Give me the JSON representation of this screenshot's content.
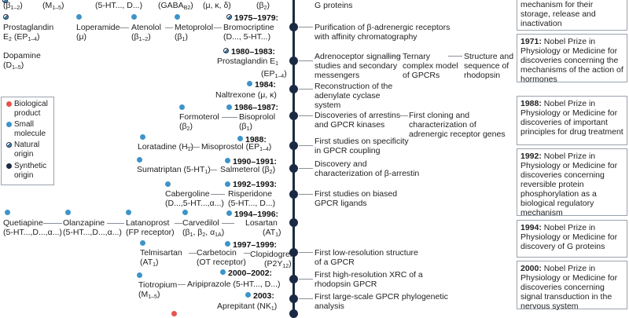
{
  "legend": {
    "items": [
      {
        "label": "Biological product",
        "kind": "biological"
      },
      {
        "label": "Small molecule",
        "kind": "small"
      },
      {
        "label": "Natural origin",
        "kind": "natural"
      },
      {
        "label": "Synthetic origin",
        "kind": "synthetic"
      }
    ]
  },
  "years": {
    "y1975": "1975–1979:",
    "y1980": "1980–1983:",
    "y1984": "1984:",
    "y1986": "1986–1987:",
    "y1988": "1988:",
    "y1990": "1990–1991:",
    "y1992": "1992–1993:",
    "y1994": "1994–1996:",
    "y1997": "1997–1999:",
    "y2000": "2000–2002:",
    "y2003": "2003:"
  },
  "drugs": {
    "top_beta12": "(β",
    "top_m15": "(M",
    "top_5ht": "(5-HT..., D...)",
    "top_gaba": "(GABA",
    "top_mukd": "(μ, κ, δ)",
    "top_beta2": "(β",
    "prostaglandin_e2": "Prostaglandin",
    "prostaglandin_e2_sub": "E",
    "prostaglandin_e2_rec": "(EP",
    "loperamide": "Loperamide",
    "loperamide_rec": "(μ)",
    "atenolol": "Atenolol",
    "atenolol_rec": "(β",
    "metoprolol": "Metoprolol",
    "metoprolol_rec": "(β",
    "bromocriptine": "Bromocriptine",
    "bromocriptine_rec": "(D..., 5-HT...)",
    "dopamine": "Dopamine",
    "dopamine_rec": "(D",
    "prostaglandin_e1": "Prostaglandin E",
    "prostaglandin_e1_rec": "(EP",
    "naltrexone": "Naltrexone (μ, κ)",
    "formoterol": "Formoterol",
    "formoterol_rec": "(β",
    "bisoprolol": "Bisoprolol",
    "bisoprolol_rec": "(β",
    "loratadine": "Loratadine (H",
    "misoprostol": "Misoprostol (EP",
    "sumatriptan": "Sumatriptan (5-HT",
    "salmeterol": "Salmeterol (β",
    "cabergoline": "Cabergoline",
    "cabergoline_rec": "(D...,5-HT...,α...)",
    "risperidone": "Risperidone",
    "risperidone_rec": "(5-HT..., D...)",
    "quetiapine": "Quetiapine",
    "quetiapine_rec": "(5-HT...,D...,α...)",
    "olanzapine": "Olanzapine",
    "olanzapine_rec": "(5-HT...,D...,α...)",
    "latanoprost": "Latanoprost",
    "latanoprost_rec": "(FP receptor)",
    "carvedilol": "Carvedilol",
    "carvedilol_rec": "(β",
    "losartan": "Losartan",
    "losartan_rec": "(AT",
    "telmisartan": "Telmisartan",
    "telmisartan_rec": "(AT",
    "carbetocin": "Carbetocin",
    "carbetocin_rec": "(OT receptor)",
    "clopidogrel": "Clopidogrel",
    "clopidogrel_rec": "(P2Y",
    "tiotropium": "Tiotropium",
    "tiotropium_rec": "(M",
    "aripiprazole": "Aripiprazole (5-HT..., D...)",
    "aprepitant": "Aprepitant (NK"
  },
  "discoveries": {
    "g_proteins": "G proteins",
    "purification": "Purification of β-adrenergic receptors with affinity chromatography",
    "adrenoceptor": "Adrenoceptor signalling studies and secondary messengers",
    "ternary": "Ternary complex model of GPCRs",
    "structure": "Structure and sequence of rhodopsin",
    "adenylate": "Reconstruction of the adenylate cyclase system",
    "arrestins": "Discoveries of arrestins and GPCR kinases",
    "cloning": "First cloning and characterization of adrenergic receptor genes",
    "coupling": "First studies on specificity in GPCR coupling",
    "barrestin": "Discovery and characterization of β-arrestin",
    "biased": "First studies on biased GPCR ligands",
    "lowres": "First low-resolution structure of a GPCR",
    "highres": "First high-resolution XRC of a rhodopsin GPCR",
    "phylogenetic": "First large-scale GPCR phylogenetic analysis"
  },
  "nobel": {
    "top_text": "mechanism for their storage, release and inactivation",
    "n1971_year": "1971:",
    "n1971_text": " Nobel Prize in Physiology or Medicine for discoveries concerning the mechanisms of the action of hormones",
    "n1988_year": "1988:",
    "n1988_text": " Nobel Prize in Physiology or Medicine for discoveries of important principles for drug treatment",
    "n1992_year": "1992:",
    "n1992_text": " Nobel Prize in Physiology or Medicine for discoveries concerning reversible protein phosphorylation as a biological regulatory mechanism",
    "n1994_year": "1994:",
    "n1994_text": " Nobel Prize in Physiology or Medicine for discovery of G proteins",
    "n2000_year": "2000:",
    "n2000_text": " Nobel Prize in Physiology or Medicine for discoveries concerning signal transduction in the nervous system"
  },
  "colors": {
    "small_molecule": "#3d94c8",
    "biological": "#e4554f",
    "synthetic": "#1b2a44",
    "spine": "#1b2a44"
  }
}
